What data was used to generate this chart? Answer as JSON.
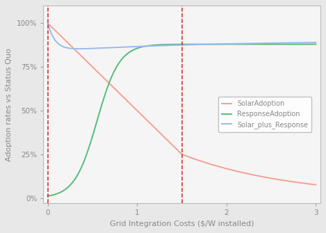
{
  "title": "",
  "xlabel": "Grid Integration Costs ($/W installed)",
  "ylabel": "Adoption rates vs Status Quo",
  "xlim": [
    -0.05,
    3.05
  ],
  "ylim": [
    -0.03,
    1.1
  ],
  "yticks": [
    0,
    0.25,
    0.5,
    0.75,
    1.0
  ],
  "ytick_labels": [
    "0%",
    "25%",
    "50%",
    "75%",
    "100%"
  ],
  "xticks": [
    0,
    1,
    2,
    3
  ],
  "vlines": [
    0,
    1.5
  ],
  "vline_color": "#cc2222",
  "solar_color": "#f5a090",
  "response_color": "#55bb77",
  "combined_color": "#99bbee",
  "legend_labels": [
    "SolarAdoption",
    "ResponseAdoption",
    "Solar_plus_Response"
  ],
  "background_color": "#e8e8e8",
  "plot_bg_color": "#f5f5f5",
  "spine_color": "#bbbbbb",
  "tick_color": "#888888",
  "label_color": "#888888",
  "figsize": [
    4.69,
    3.35
  ],
  "dpi": 100
}
